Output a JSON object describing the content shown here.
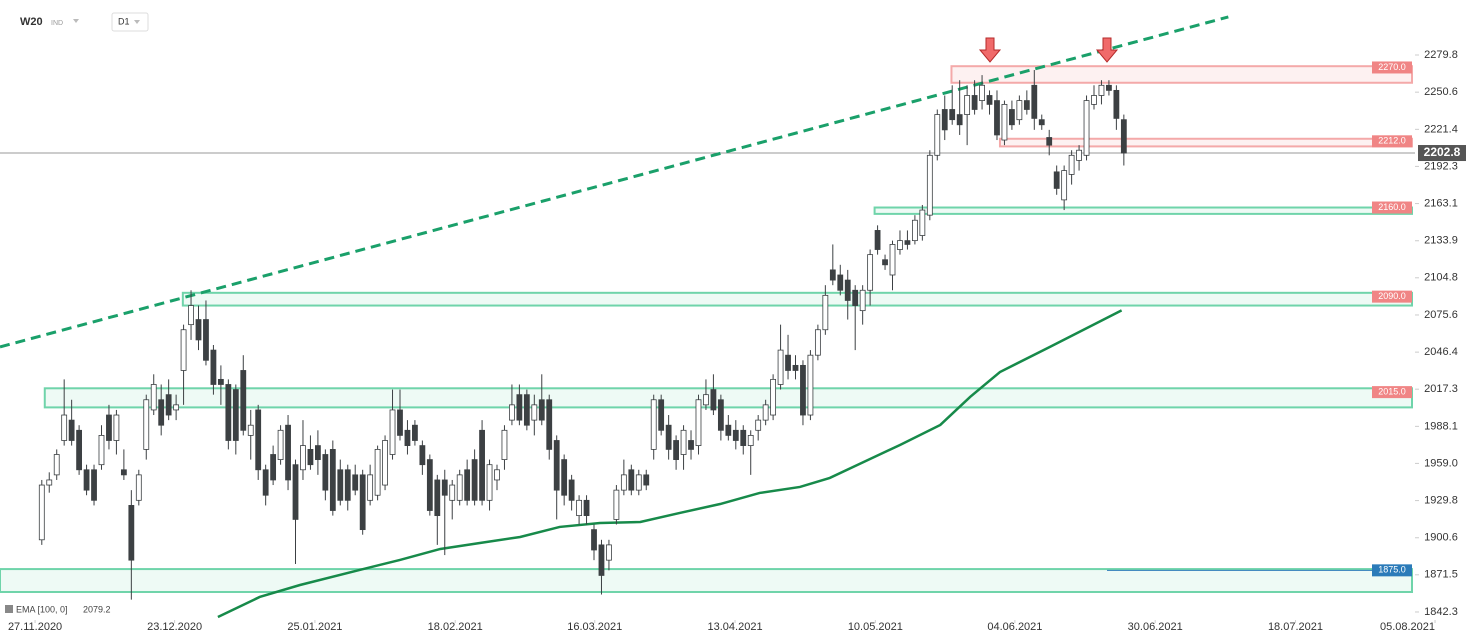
{
  "header": {
    "symbol": "W20",
    "market": "IND",
    "interval": "D1"
  },
  "chart_data": {
    "type": "candlestick",
    "candles": [
      [
        1899,
        1946,
        1895,
        1942
      ],
      [
        1942,
        1952,
        1936,
        1946
      ],
      [
        1950,
        1970,
        1946,
        1966
      ],
      [
        1977,
        2025,
        1973,
        1997
      ],
      [
        1993,
        2009,
        1973,
        1977
      ],
      [
        1985,
        1989,
        1950,
        1954
      ],
      [
        1954,
        1958,
        1934,
        1938
      ],
      [
        1954,
        1958,
        1926,
        1930
      ],
      [
        1958,
        1989,
        1954,
        1981
      ],
      [
        1997,
        2005,
        1970,
        1977
      ],
      [
        1977,
        2001,
        1966,
        1997
      ],
      [
        1954,
        1970,
        1946,
        1950
      ],
      [
        1926,
        1938,
        1852,
        1883
      ],
      [
        1930,
        1954,
        1926,
        1950
      ],
      [
        1970,
        2013,
        1962,
        2009
      ],
      [
        2001,
        2029,
        1997,
        2021
      ],
      [
        2009,
        2021,
        1981,
        1989
      ],
      [
        2013,
        2025,
        1993,
        1997
      ],
      [
        2001,
        2013,
        1993,
        2005
      ],
      [
        2032,
        2068,
        2005,
        2064
      ],
      [
        2068,
        2095,
        2056,
        2083
      ],
      [
        2072,
        2083,
        2048,
        2056
      ],
      [
        2072,
        2087,
        2036,
        2040
      ],
      [
        2048,
        2052,
        2013,
        2021
      ],
      [
        2025,
        2036,
        2005,
        2021
      ],
      [
        2021,
        2025,
        1970,
        1977
      ],
      [
        2017,
        2021,
        1966,
        1977
      ],
      [
        2032,
        2044,
        1981,
        1985
      ],
      [
        1981,
        2001,
        1962,
        1989
      ],
      [
        2001,
        2005,
        1946,
        1954
      ],
      [
        1954,
        1958,
        1926,
        1934
      ],
      [
        1966,
        1973,
        1942,
        1946
      ],
      [
        1962,
        1989,
        1958,
        1985
      ],
      [
        1989,
        1997,
        1938,
        1946
      ],
      [
        1958,
        1962,
        1880,
        1915
      ],
      [
        1954,
        1993,
        1946,
        1973
      ],
      [
        1970,
        1981,
        1954,
        1958
      ],
      [
        1973,
        1985,
        1950,
        1962
      ],
      [
        1966,
        1970,
        1930,
        1938
      ],
      [
        1970,
        1977,
        1918,
        1922
      ],
      [
        1954,
        1962,
        1926,
        1930
      ],
      [
        1954,
        1958,
        1922,
        1930
      ],
      [
        1950,
        1958,
        1934,
        1938
      ],
      [
        1950,
        1954,
        1903,
        1907
      ],
      [
        1930,
        1958,
        1926,
        1950
      ],
      [
        1934,
        1973,
        1930,
        1970
      ],
      [
        1942,
        1981,
        1938,
        1977
      ],
      [
        1966,
        2017,
        1962,
        2001
      ],
      [
        2001,
        2017,
        1977,
        1981
      ],
      [
        1985,
        1993,
        1966,
        1973
      ],
      [
        1989,
        1993,
        1973,
        1977
      ],
      [
        1973,
        1977,
        1950,
        1958
      ],
      [
        1962,
        1966,
        1918,
        1922
      ],
      [
        1946,
        1950,
        1895,
        1918
      ],
      [
        1946,
        1954,
        1887,
        1934
      ],
      [
        1930,
        1946,
        1915,
        1942
      ],
      [
        1930,
        1954,
        1926,
        1950
      ],
      [
        1954,
        1962,
        1926,
        1930
      ],
      [
        1962,
        1970,
        1926,
        1930
      ],
      [
        1985,
        1993,
        1926,
        1930
      ],
      [
        1930,
        1962,
        1922,
        1958
      ],
      [
        1946,
        1958,
        1938,
        1954
      ],
      [
        1962,
        1989,
        1954,
        1985
      ],
      [
        1993,
        2021,
        1989,
        2005
      ],
      [
        2013,
        2021,
        1989,
        1993
      ],
      [
        2013,
        2017,
        1985,
        1989
      ],
      [
        1993,
        2013,
        1981,
        2005
      ],
      [
        2009,
        2029,
        1989,
        1993
      ],
      [
        2009,
        2013,
        1962,
        1970
      ],
      [
        1977,
        1981,
        1915,
        1938
      ],
      [
        1962,
        1966,
        1926,
        1934
      ],
      [
        1946,
        1950,
        1922,
        1930
      ],
      [
        1918,
        1934,
        1911,
        1930
      ],
      [
        1930,
        1934,
        1911,
        1918
      ],
      [
        1907,
        1911,
        1883,
        1891
      ],
      [
        1895,
        1899,
        1856,
        1871
      ],
      [
        1883,
        1899,
        1875,
        1895
      ],
      [
        1915,
        1942,
        1911,
        1938
      ],
      [
        1938,
        1962,
        1934,
        1950
      ],
      [
        1954,
        1958,
        1934,
        1938
      ],
      [
        1938,
        1954,
        1934,
        1950
      ],
      [
        1950,
        1954,
        1938,
        1942
      ],
      [
        1970,
        2013,
        1962,
        2009
      ],
      [
        2009,
        2013,
        1981,
        1985
      ],
      [
        1989,
        1997,
        1962,
        1970
      ],
      [
        1977,
        1981,
        1954,
        1962
      ],
      [
        1966,
        1989,
        1954,
        1985
      ],
      [
        1977,
        1985,
        1962,
        1970
      ],
      [
        1973,
        2013,
        1966,
        2009
      ],
      [
        2005,
        2025,
        2001,
        2013
      ],
      [
        2017,
        2029,
        1997,
        2001
      ],
      [
        2009,
        2013,
        1977,
        1985
      ],
      [
        1989,
        1997,
        1977,
        1981
      ],
      [
        1985,
        1993,
        1970,
        1977
      ],
      [
        1985,
        1989,
        1966,
        1973
      ],
      [
        1973,
        1985,
        1950,
        1981
      ],
      [
        1985,
        1997,
        1977,
        1993
      ],
      [
        1993,
        2009,
        1989,
        2005
      ],
      [
        1997,
        2029,
        1993,
        2025
      ],
      [
        2021,
        2068,
        2017,
        2048
      ],
      [
        2044,
        2060,
        2025,
        2032
      ],
      [
        2036,
        2044,
        2025,
        2032
      ],
      [
        2036,
        2040,
        1989,
        1997
      ],
      [
        1997,
        2048,
        1993,
        2044
      ],
      [
        2044,
        2068,
        2040,
        2064
      ],
      [
        2064,
        2099,
        2060,
        2091
      ],
      [
        2111,
        2131,
        2099,
        2103
      ],
      [
        2107,
        2115,
        2091,
        2095
      ],
      [
        2103,
        2111,
        2072,
        2087
      ],
      [
        2095,
        2099,
        2048,
        2083
      ],
      [
        2079,
        2099,
        2068,
        2095
      ],
      [
        2095,
        2127,
        2083,
        2123
      ],
      [
        2142,
        2146,
        2123,
        2127
      ],
      [
        2119,
        2123,
        2111,
        2115
      ],
      [
        2107,
        2134,
        2095,
        2131
      ],
      [
        2127,
        2142,
        2123,
        2134
      ],
      [
        2134,
        2142,
        2127,
        2131
      ],
      [
        2134,
        2154,
        2131,
        2150
      ],
      [
        2138,
        2162,
        2134,
        2158
      ],
      [
        2154,
        2205,
        2150,
        2201
      ],
      [
        2201,
        2237,
        2197,
        2233
      ],
      [
        2237,
        2248,
        2213,
        2221
      ],
      [
        2237,
        2256,
        2225,
        2229
      ],
      [
        2233,
        2260,
        2217,
        2225
      ],
      [
        2233,
        2256,
        2209,
        2248
      ],
      [
        2248,
        2260,
        2233,
        2237
      ],
      [
        2244,
        2264,
        2237,
        2256
      ],
      [
        2248,
        2252,
        2233,
        2241
      ],
      [
        2244,
        2252,
        2213,
        2217
      ],
      [
        2213,
        2244,
        2209,
        2241
      ],
      [
        2237,
        2244,
        2221,
        2225
      ],
      [
        2229,
        2248,
        2225,
        2244
      ],
      [
        2244,
        2252,
        2233,
        2237
      ],
      [
        2256,
        2268,
        2221,
        2230
      ],
      [
        2229,
        2233,
        2221,
        2225
      ],
      [
        2215,
        2221,
        2201,
        2209
      ],
      [
        2188,
        2193,
        2170,
        2175
      ],
      [
        2166,
        2193,
        2158,
        2189
      ],
      [
        2186,
        2205,
        2178,
        2201
      ],
      [
        2197,
        2209,
        2189,
        2205
      ],
      [
        2201,
        2248,
        2197,
        2244
      ],
      [
        2241,
        2256,
        2237,
        2248
      ],
      [
        2248,
        2260,
        2241,
        2256
      ],
      [
        2256,
        2260,
        2248,
        2252
      ],
      [
        2252,
        2256,
        2221,
        2230
      ],
      [
        2229,
        2233,
        2193,
        2202.8
      ]
    ],
    "up_color": "#ffffff",
    "down_color": "#3c4043",
    "last_price": 2202.8,
    "xlim": [
      -5.6,
      187.5
    ],
    "xticks": [
      {
        "value": -0.9,
        "label": "27.11.2020"
      },
      {
        "value": 17.8,
        "label": "23.12.2020"
      },
      {
        "value": 36.6,
        "label": "25.01.2021"
      },
      {
        "value": 55.4,
        "label": "18.02.2021"
      },
      {
        "value": 74.1,
        "label": "16.03.2021"
      },
      {
        "value": 92.9,
        "label": "13.04.2021"
      },
      {
        "value": 111.7,
        "label": "10.05.2021"
      },
      {
        "value": 130.4,
        "label": "04.06.2021"
      },
      {
        "value": 149.2,
        "label": "30.06.2021"
      },
      {
        "value": 168.0,
        "label": "18.07.2021"
      },
      {
        "value": 186.7,
        "label": "05.08.2021"
      }
    ],
    "ylim": [
      1836,
      2323
    ],
    "yticks": [
      2279.8,
      2250.6,
      2221.4,
      2192.3,
      2163.1,
      2133.9,
      2104.8,
      2075.6,
      2046.4,
      2017.3,
      1988.1,
      {
        "value": 1959,
        "label": "1959.0"
      },
      1929.8,
      1900.6,
      1871.5,
      1842.3
    ],
    "levels": [
      {
        "value": 2270,
        "label": "2270.0",
        "band": [
          2258,
          2271
        ],
        "from": 121.9,
        "color": "#f08585",
        "fill": "#fdf1f1",
        "stroke": "#f4a9a9"
      },
      {
        "value": 2212,
        "label": "2212.0",
        "band": [
          2208,
          2214
        ],
        "from": 128.4,
        "color": "#f08585",
        "fill": "#fdf1f1",
        "stroke": "#f4a9a9"
      },
      {
        "value": 2160,
        "label": "2160.0",
        "band": [
          2155,
          2160
        ],
        "from": 111.6,
        "color": "#f08585",
        "fill": "#eefaf5",
        "stroke": "#6fd4aa"
      },
      {
        "value": 2090,
        "label": "2090.0",
        "band": [
          2083,
          2093
        ],
        "from": 18.9,
        "color": "#f08585",
        "fill": "#eefaf5",
        "stroke": "#6fd4aa"
      },
      {
        "value": 2015,
        "label": "2015.0",
        "band": [
          2003,
          2018
        ],
        "from": 0.4,
        "color": "#f08585",
        "fill": "#eefaf5",
        "stroke": "#6fd4aa"
      },
      {
        "value": 1875,
        "label": "1875.0",
        "band": [
          1858,
          1876
        ],
        "from": -5.6,
        "color": "#2b7bb9",
        "fill": "#eefaf5",
        "stroke": "#6fd4aa"
      }
    ],
    "trendline": {
      "x": [
        -5.6,
        159.0
      ],
      "y": [
        2050.5,
        2309.7
      ],
      "color": "#1aa06a"
    },
    "ema": {
      "name": "EMA [100, 0]",
      "color": "#178a4a",
      "x": [
        23.6,
        29.2,
        34.6,
        42.6,
        48.0,
        53.4,
        58.7,
        64.1,
        69.4,
        74.8,
        80.2,
        85.5,
        90.9,
        96.2,
        101.6,
        105.6,
        109.6,
        115.0,
        120.4,
        124.4,
        128.4,
        135.1,
        144.7
      ],
      "values": [
        1838.4,
        1854.1,
        1863.5,
        1875.3,
        1883.2,
        1891.8,
        1896.5,
        1901.2,
        1909.1,
        1912.2,
        1913.0,
        1920.1,
        1927.1,
        1935.8,
        1940.5,
        1947.6,
        1958.6,
        1973.5,
        1989.2,
        2011.2,
        2030.8,
        2050.5,
        2079.2
      ]
    }
  }
}
